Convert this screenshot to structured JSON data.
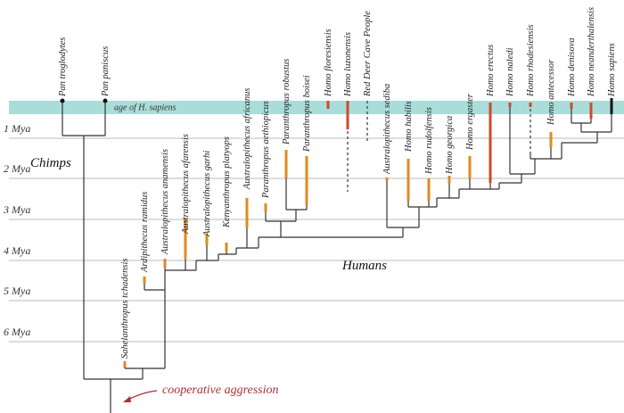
{
  "band_label": "age of H. sapiens",
  "time_labels": [
    "1 Mya",
    "2 Mya",
    "3 Mya",
    "4 Mya",
    "5 Mya",
    "6 Mya"
  ],
  "groups": {
    "chimps": "Chimps",
    "humans": "Humans"
  },
  "annotation": "cooperative aggression",
  "species": [
    "Pan troglodytes",
    "Pan paniscus",
    "Sahelanthropus tchadensis",
    "Ardipithecus ramidus",
    "Australopithecus anamensis",
    "Australopithecus afarensis",
    "Australopithecus garhi",
    "Kenyanthropus platyops",
    "Australopithecus africanus",
    "Paranthropus aethiopicus",
    "Paranthropus robustus",
    "Paranthropus boisei",
    "Homo floresiensis",
    "Homo luzonensis",
    "Red Deer Cave People",
    "Australopithecus sediba",
    "Homo habilis",
    "Homo rudolfensis",
    "Homo georgica",
    "Homo ergaster",
    "Homo erectus",
    "Homo naledi",
    "Homo rhodesiensis",
    "Homo antecessor",
    "Homo denisova",
    "Homo neanderthalensis",
    "Homo sapiens"
  ]
}
